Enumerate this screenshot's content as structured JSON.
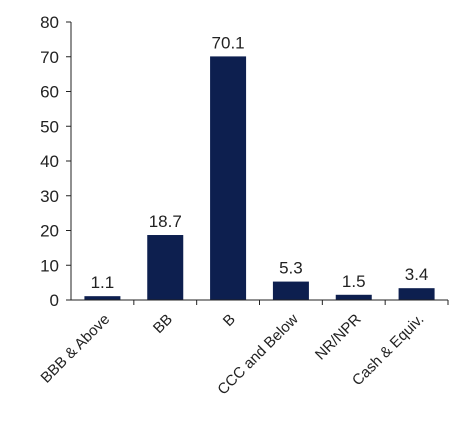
{
  "chart_data": {
    "type": "bar",
    "title": "",
    "xlabel": "",
    "ylabel": "",
    "categories": [
      "BBB & Above",
      "BB",
      "B",
      "CCC and Below",
      "NR/NPR",
      "Cash & Equiv."
    ],
    "values": [
      1.1,
      18.7,
      70.1,
      5.3,
      1.5,
      3.4
    ],
    "data_labels": [
      "1.1",
      "18.7",
      "70.1",
      "5.3",
      "1.5",
      "3.4"
    ],
    "ylim": [
      0,
      80
    ],
    "yticks": [
      0,
      10,
      20,
      30,
      40,
      50,
      60,
      70,
      80
    ],
    "ytick_labels": [
      "0",
      "10",
      "20",
      "30",
      "40",
      "50",
      "60",
      "70",
      "80"
    ],
    "grid": false,
    "legend": "none",
    "bar_color": "#0d1f4f",
    "axis_color": "#222222",
    "text_color": "#222222"
  }
}
